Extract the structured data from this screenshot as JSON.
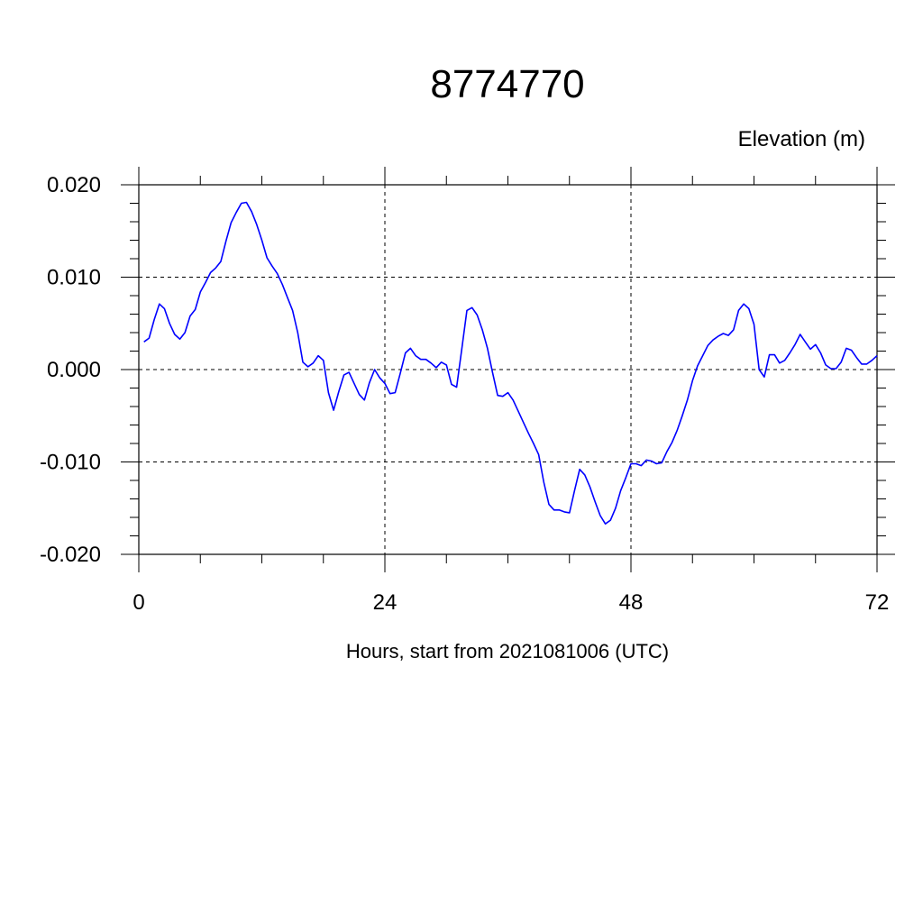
{
  "chart_data": {
    "type": "line",
    "title": "8774770",
    "ylabel": "Elevation (m)",
    "xlabel": "Hours, start from 2021081006 (UTC)",
    "xlim": [
      0,
      72
    ],
    "ylim": [
      -0.02,
      0.02
    ],
    "x_ticks": [
      0,
      24,
      48,
      72
    ],
    "x_tick_labels": [
      "0",
      "24",
      "48",
      "72"
    ],
    "y_ticks": [
      -0.02,
      -0.01,
      0.0,
      0.01,
      0.02
    ],
    "y_tick_labels": [
      "-0.020",
      "-0.010",
      "0.000",
      "0.010",
      "0.020"
    ],
    "grid": true,
    "line_color": "#0000ff",
    "series": [
      {
        "x": [
          0.5,
          1.0,
          1.5,
          2.0,
          2.5,
          3.0,
          3.5,
          4.0,
          4.5,
          5.0,
          5.5,
          6.0,
          6.5,
          7.0,
          7.5,
          8.0,
          8.5,
          9.0,
          9.5,
          10.0,
          10.5,
          11.0,
          11.5,
          12.0,
          12.5,
          13.0,
          13.5,
          14.0,
          14.5,
          15.0,
          15.5,
          16.0,
          16.5,
          17.0,
          17.5,
          18.0,
          18.5,
          19.0,
          19.5,
          20.0,
          20.5,
          21.0,
          21.5,
          22.0,
          22.5,
          23.0,
          23.5,
          24.0,
          24.5,
          25.0,
          25.5,
          26.0,
          26.5,
          27.0,
          27.5,
          28.0,
          28.5,
          29.0,
          29.5,
          30.0,
          30.5,
          31.0,
          31.5,
          32.0,
          32.5,
          33.0,
          33.5,
          34.0,
          34.5,
          35.0,
          35.5,
          36.0,
          36.5,
          37.0,
          37.5,
          38.0,
          38.5,
          39.0,
          39.5,
          40.0,
          40.5,
          41.0,
          41.5,
          42.0,
          42.5,
          43.0,
          43.5,
          44.0,
          44.5,
          45.0,
          45.5,
          46.0,
          46.5,
          47.0,
          47.5,
          48.0,
          48.5,
          49.0,
          49.5,
          50.0,
          50.5,
          51.0,
          51.5,
          52.0,
          52.5,
          53.0,
          53.5,
          54.0,
          54.5,
          55.0,
          55.5,
          56.0,
          56.5,
          57.0,
          57.5,
          58.0,
          58.5,
          59.0,
          59.5,
          60.0,
          60.5,
          61.0,
          61.5,
          62.0,
          62.5,
          63.0,
          63.5,
          64.0,
          64.5,
          65.0,
          65.5,
          66.0,
          66.5,
          67.0,
          67.5,
          68.0,
          68.5,
          69.0,
          69.5,
          70.0,
          70.5,
          71.0,
          71.5,
          72.0
        ],
        "values": [
          0.003,
          0.0034,
          0.0054,
          0.0071,
          0.0066,
          0.005,
          0.0038,
          0.0033,
          0.004,
          0.0058,
          0.0065,
          0.0084,
          0.0094,
          0.0105,
          0.011,
          0.0117,
          0.0139,
          0.0159,
          0.017,
          0.018,
          0.0181,
          0.0171,
          0.0157,
          0.014,
          0.0121,
          0.0112,
          0.0104,
          0.0092,
          0.0078,
          0.0064,
          0.004,
          0.0008,
          0.0003,
          0.0007,
          0.0015,
          0.001,
          -0.0025,
          -0.0044,
          -0.0024,
          -0.0006,
          -0.0003,
          -0.0015,
          -0.0027,
          -0.0033,
          -0.0014,
          0.0,
          -0.0009,
          -0.0015,
          -0.0026,
          -0.0025,
          -0.0004,
          0.0018,
          0.0023,
          0.0015,
          0.0011,
          0.0011,
          0.0007,
          0.0002,
          0.0008,
          0.0005,
          -0.0016,
          -0.0019,
          0.0022,
          0.0064,
          0.0067,
          0.0059,
          0.0043,
          0.0023,
          -0.0003,
          -0.0028,
          -0.0029,
          -0.0025,
          -0.0033,
          -0.0045,
          -0.0057,
          -0.0069,
          -0.008,
          -0.0092,
          -0.0122,
          -0.0146,
          -0.0152,
          -0.0152,
          -0.0154,
          -0.0155,
          -0.0131,
          -0.0108,
          -0.0114,
          -0.0127,
          -0.0143,
          -0.0158,
          -0.0167,
          -0.0163,
          -0.015,
          -0.0131,
          -0.0117,
          -0.0102,
          -0.0102,
          -0.0104,
          -0.0098,
          -0.0099,
          -0.0102,
          -0.0101,
          -0.0089,
          -0.0079,
          -0.0066,
          -0.005,
          -0.0033,
          -0.0012,
          0.0004,
          0.0015,
          0.0026,
          0.0032,
          0.0036,
          0.0039,
          0.0037,
          0.0043,
          0.0064,
          0.0071,
          0.0066,
          0.0049,
          0.0,
          -0.0008,
          0.0016,
          0.0016,
          0.0007,
          0.001,
          0.0018,
          0.0027,
          0.0038,
          0.003,
          0.0022,
          0.0027,
          0.0018,
          0.0005,
          0.0001,
          0.0001,
          0.0008,
          0.0023,
          0.0021,
          0.0013,
          0.0006,
          0.0006,
          0.001,
          0.0015
        ]
      }
    ]
  }
}
